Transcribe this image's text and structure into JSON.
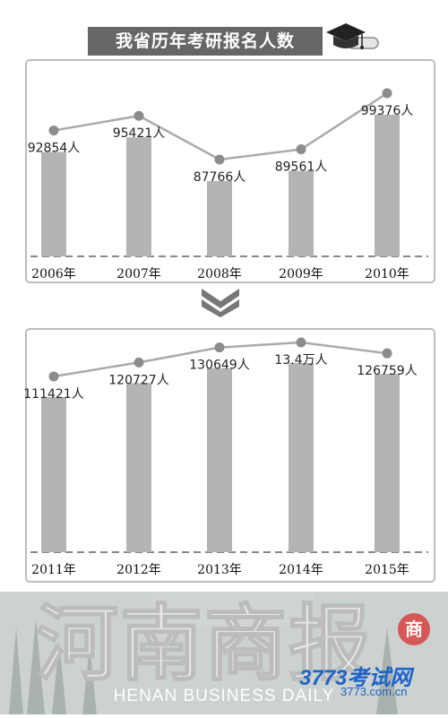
{
  "title": "我省历年考研报名人数",
  "colors": {
    "bar": "#b4b4b4",
    "line": "#aaaaaa",
    "point": "#8c8c8c",
    "title_bg": "#666666",
    "frame": "#bdbdbd"
  },
  "chart_data": [
    {
      "type": "bar",
      "categories": [
        "2006年",
        "2007年",
        "2008年",
        "2009年",
        "2010年"
      ],
      "values": [
        92854,
        95421,
        87766,
        89561,
        99376
      ],
      "data_labels": [
        "92854人",
        "95421人",
        "87766人",
        "89561人",
        "99376人"
      ],
      "overlay_line": true,
      "grid": false
    },
    {
      "type": "bar",
      "categories": [
        "2011年",
        "2012年",
        "2013年",
        "2014年",
        "2015年"
      ],
      "values": [
        111421,
        120727,
        130649,
        134000,
        126759
      ],
      "data_labels": [
        "111421人",
        "120727人",
        "130649人",
        "13.4万人",
        "126759人"
      ],
      "overlay_line": true,
      "grid": false
    }
  ],
  "footer": {
    "title": "河南商报",
    "subtitle": "HENAN BUSINESS DAILY",
    "seal_text": "商",
    "site_logo": "3773考试网",
    "site_url": "3773.com.cn"
  },
  "icons": [
    "graduation-cap-icon",
    "double-chevron-down-icon"
  ]
}
